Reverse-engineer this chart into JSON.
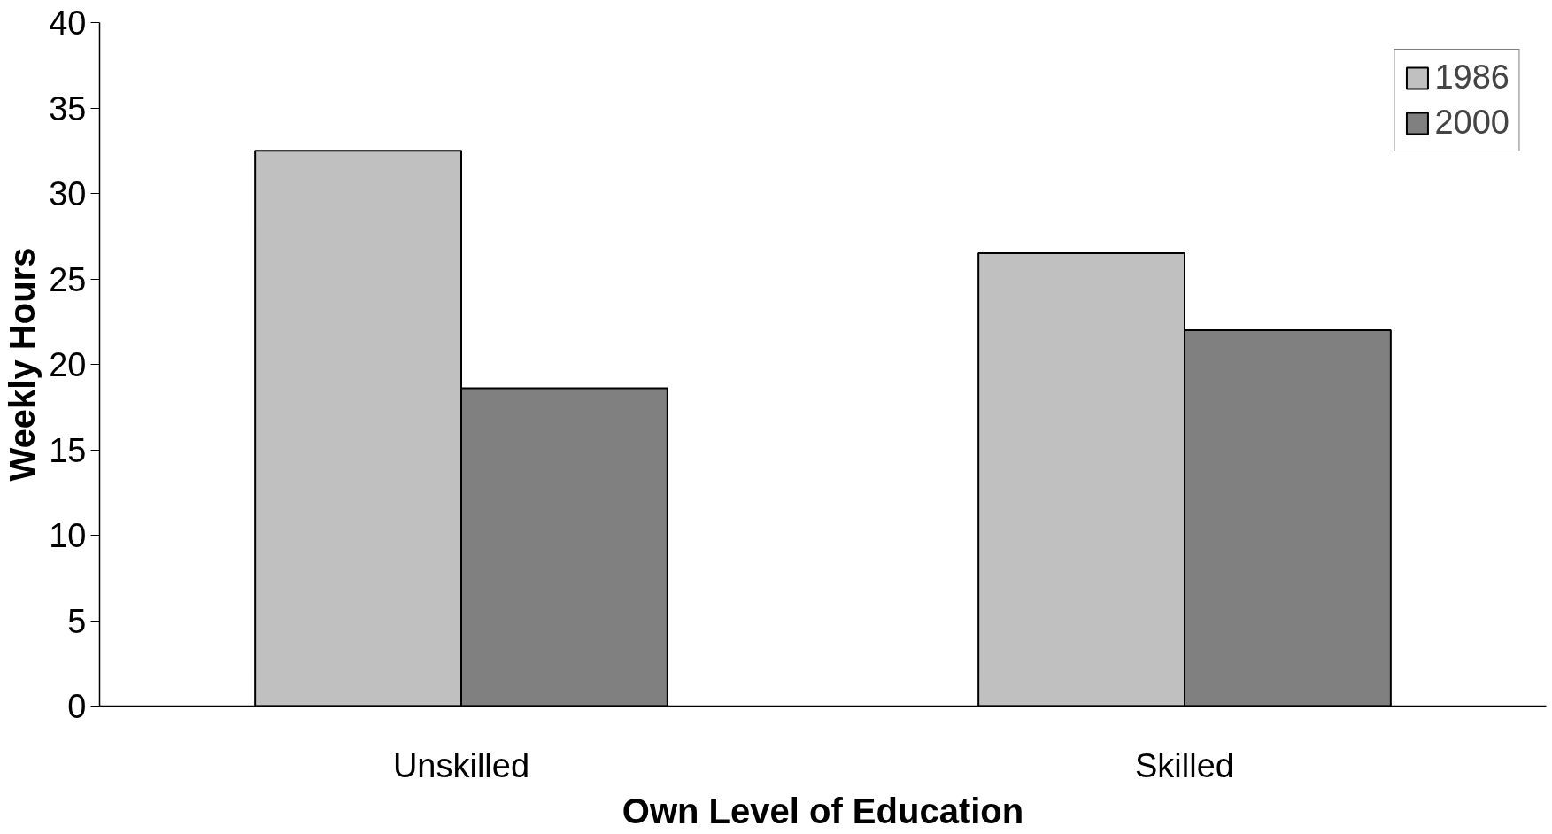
{
  "chart_data": {
    "type": "bar",
    "xlabel": "Own Level of Education",
    "ylabel": "Weekly Hours",
    "categories": [
      "Unskilled",
      "Skilled"
    ],
    "series": [
      {
        "name": "1986",
        "color": "#c0c0c0",
        "values": [
          32.5,
          26.5
        ]
      },
      {
        "name": "2000",
        "color": "#808080",
        "values": [
          18.6,
          22.0
        ]
      }
    ],
    "ylim": [
      0,
      40
    ],
    "yticks": [
      0,
      5,
      10,
      15,
      20,
      25,
      30,
      35,
      40
    ],
    "grid": false,
    "legend": "top right"
  }
}
